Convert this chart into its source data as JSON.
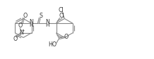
{
  "line_color": "#888888",
  "line_width": 0.8,
  "font_size": 5.2,
  "bg_color": "#ffffff",
  "text_color": "#333333",
  "figsize": [
    2.18,
    0.84
  ],
  "dpi": 100,
  "xlim": [
    0,
    218
  ],
  "ylim": [
    0,
    84
  ]
}
